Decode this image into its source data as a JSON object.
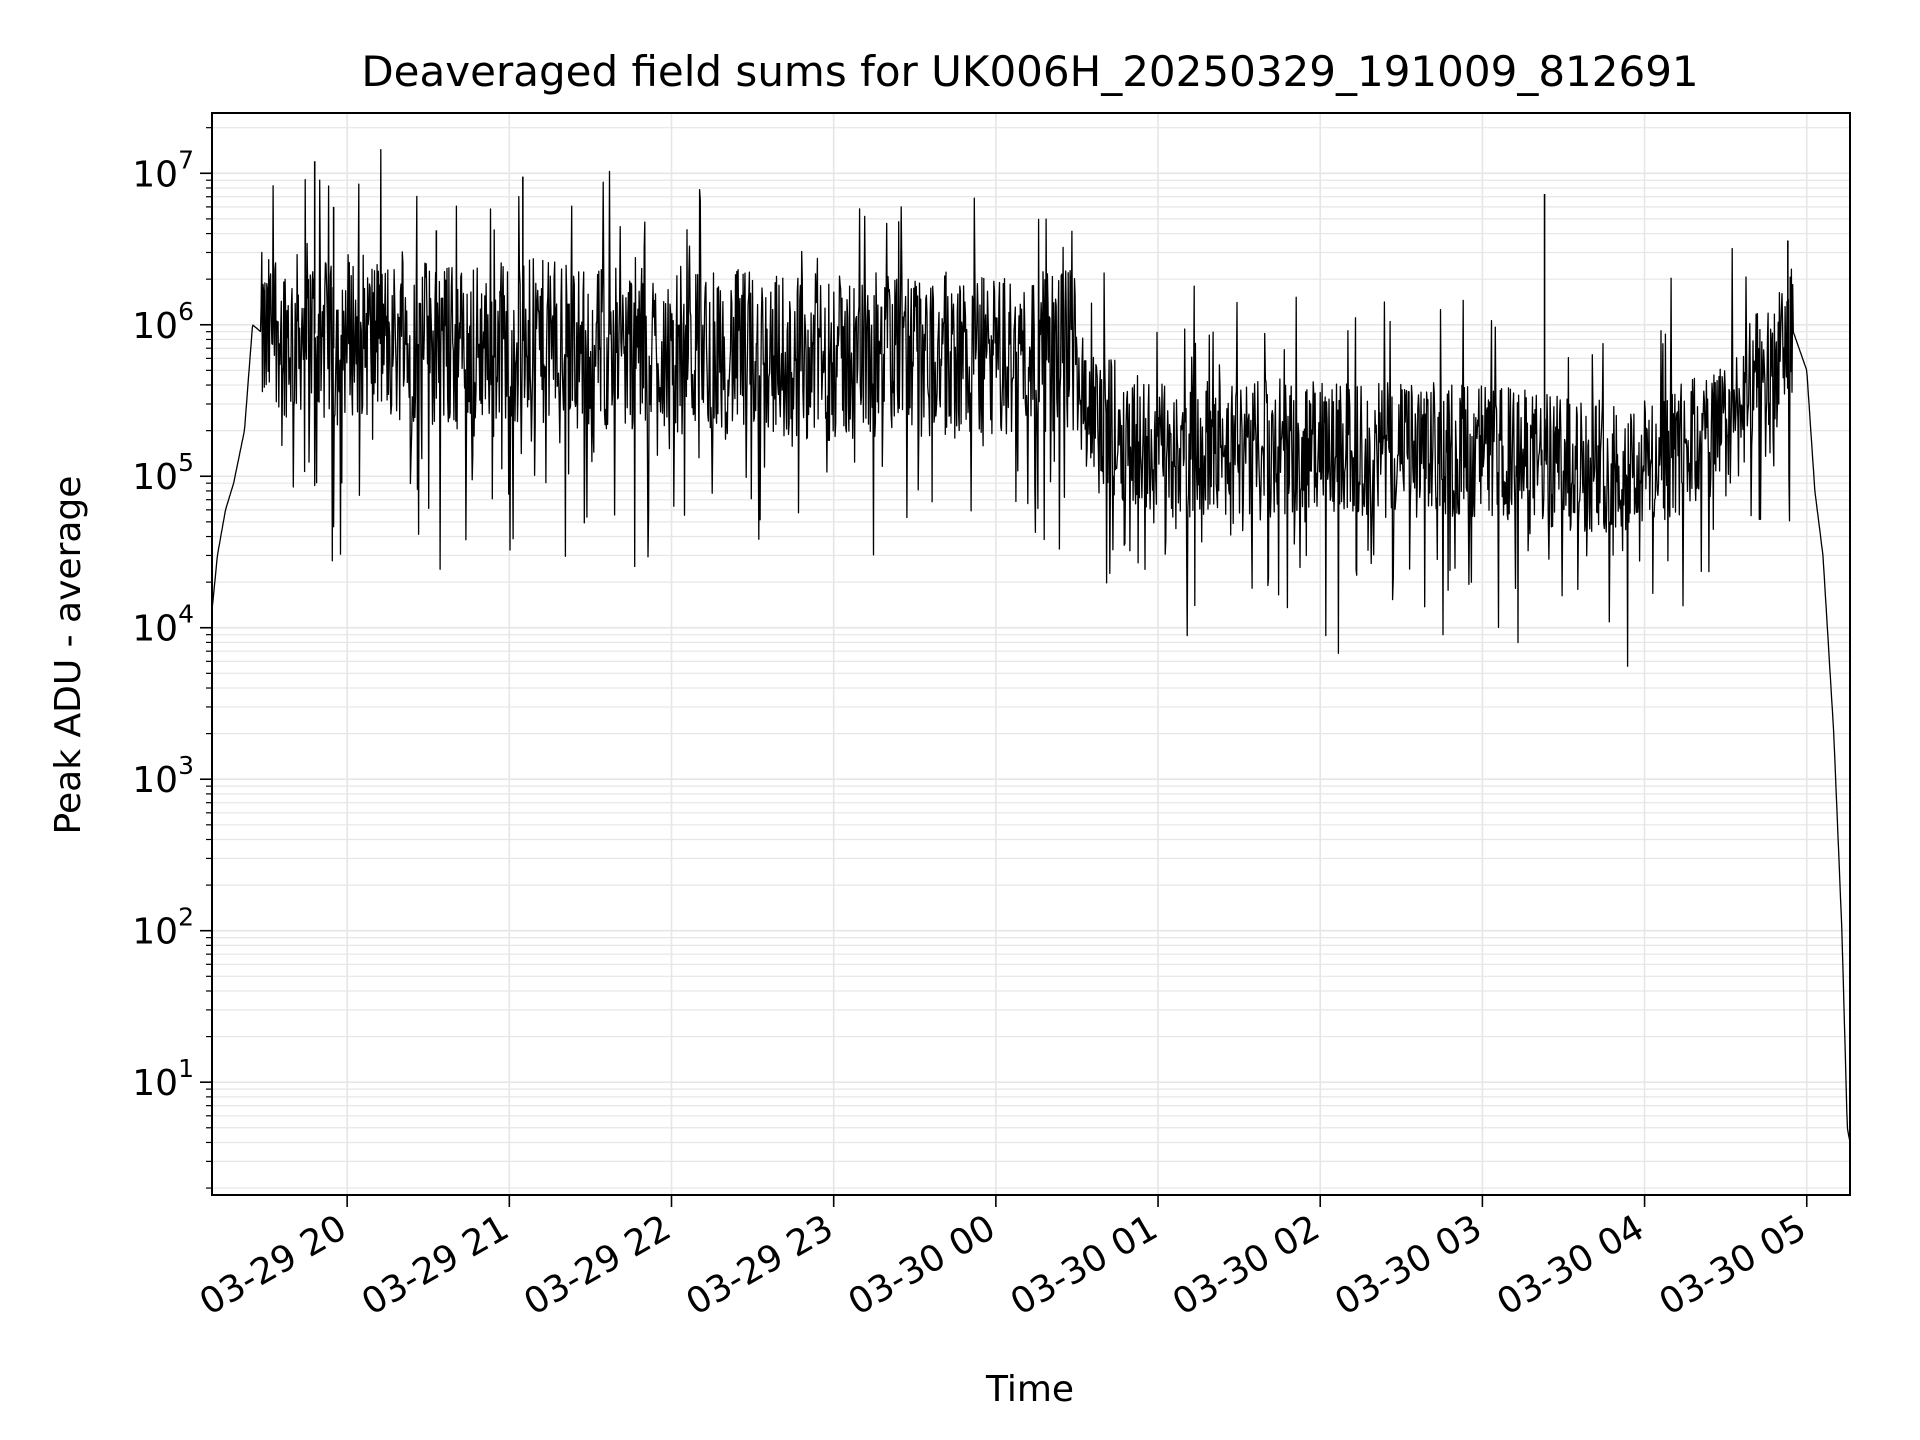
{
  "chart_data": {
    "type": "line",
    "title": "Deaveraged field sums for UK006H_20250329_191009_812691",
    "xlabel": "Time",
    "ylabel": "Peak ADU - average",
    "yscale": "log",
    "ylim": [
      1.8,
      25000000
    ],
    "xlim": [
      "2025-03-29 19:10",
      "2025-03-30 05:16"
    ],
    "grid": true,
    "line_color": "#000000",
    "grid_color": "#e6e6e6",
    "x_ticks": [
      "03-29 20",
      "03-29 21",
      "03-29 22",
      "03-29 23",
      "03-30 00",
      "03-30 01",
      "03-30 02",
      "03-30 03",
      "03-30 04",
      "03-30 05"
    ],
    "y_ticks": [
      {
        "base": "10",
        "exp": "1"
      },
      {
        "base": "10",
        "exp": "2"
      },
      {
        "base": "10",
        "exp": "3"
      },
      {
        "base": "10",
        "exp": "4"
      },
      {
        "base": "10",
        "exp": "5"
      },
      {
        "base": "10",
        "exp": "6"
      },
      {
        "base": "10",
        "exp": "7"
      }
    ],
    "series": [
      {
        "x": [
          "03-29 19:10",
          "03-29 19:12",
          "03-29 19:15",
          "03-29 19:18",
          "03-29 19:22",
          "03-29 19:25",
          "03-29 19:28",
          "03-29 19:30",
          "03-29 19:33",
          "03-29 19:36",
          "03-29 19:40",
          "03-29 19:45",
          "03-29 19:50",
          "03-29 19:55",
          "03-29 20:00",
          "03-29 20:15",
          "03-29 20:30",
          "03-29 20:45",
          "03-29 21:00",
          "03-29 21:15",
          "03-29 21:30",
          "03-29 22:00",
          "03-29 22:30",
          "03-29 23:00",
          "03-29 23:30",
          "03-30 00:00",
          "03-30 00:30",
          "03-30 00:35",
          "03-30 01:00",
          "03-30 01:30",
          "03-30 02:00",
          "03-30 02:30",
          "03-30 03:00",
          "03-30 03:30",
          "03-30 04:00",
          "03-30 04:30",
          "03-30 04:40",
          "03-30 04:50",
          "03-30 04:55",
          "03-30 05:00",
          "03-30 05:03",
          "03-30 05:06",
          "03-30 05:10",
          "03-30 05:13",
          "03-30 05:15",
          "03-30 05:16"
        ],
        "y": [
          13000,
          30000,
          60000,
          90000,
          200000,
          1000000,
          900000,
          700000,
          1100000,
          900000,
          800000,
          1000000,
          800000,
          700000,
          900000,
          800000,
          750000,
          700000,
          800000,
          750000,
          700000,
          700000,
          650000,
          600000,
          650000,
          600000,
          700000,
          250000,
          150000,
          150000,
          150000,
          150000,
          150000,
          120000,
          120000,
          200000,
          400000,
          600000,
          900000,
          500000,
          80000,
          30000,
          2000,
          100,
          5,
          4
        ]
      }
    ],
    "spikes": [
      {
        "x": "03-29 19:48",
        "y": 12000000
      },
      {
        "x": "03-29 19:55",
        "y": 6000000
      },
      {
        "x": "03-29 20:33",
        "y": 4200000
      },
      {
        "x": "03-29 21:05",
        "y": 9500000
      },
      {
        "x": "03-30 03:23",
        "y": 7300000
      },
      {
        "x": "03-30 04:53",
        "y": 3600000
      }
    ]
  }
}
